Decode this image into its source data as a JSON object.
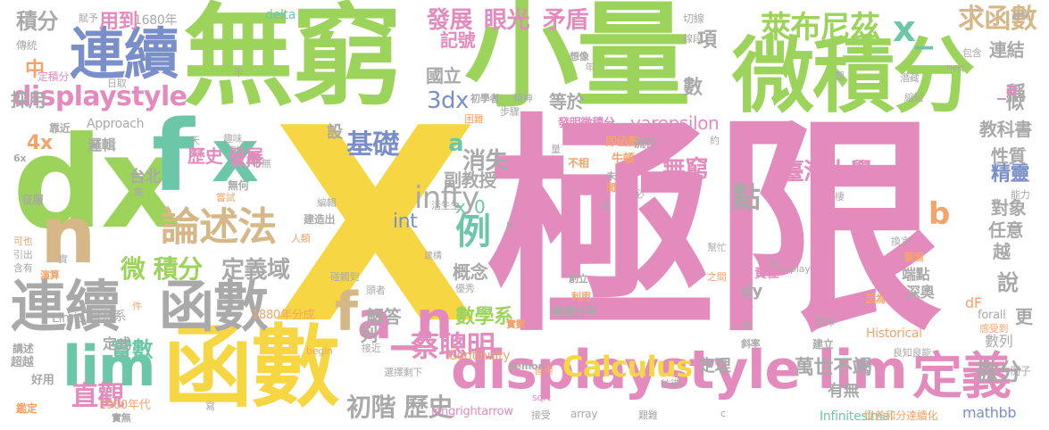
{
  "palette": {
    "pink": "#e38bbd",
    "green": "#9cd35b",
    "yellow": "#f6d743",
    "blue": "#7a8fca",
    "teal": "#6cc7a8",
    "gray": "#a9a9a9",
    "tan": "#d6b787",
    "orange": "#f4a36b",
    "lightblue": "#8ab8d9",
    "lime": "#c7db5a"
  },
  "words": [
    {
      "text": "極限",
      "color": "pink"
    },
    {
      "text": "X",
      "color": "yellow"
    },
    {
      "text": "小量",
      "color": "green"
    },
    {
      "text": "無窮",
      "color": "green"
    },
    {
      "text": "微積分",
      "color": "green"
    },
    {
      "text": "dx",
      "color": "green"
    },
    {
      "text": "函數",
      "color": "yellow"
    },
    {
      "text": "連續",
      "color": "gray"
    },
    {
      "text": "函數",
      "color": "gray"
    },
    {
      "text": "f",
      "color": "teal"
    },
    {
      "text": "x",
      "color": "teal"
    },
    {
      "text": "n",
      "color": "tan"
    },
    {
      "text": "連續",
      "color": "blue"
    },
    {
      "text": "displaystyle lim",
      "color": "pink"
    },
    {
      "text": "displaystyle",
      "color": "pink"
    },
    {
      "text": "論述法",
      "color": "tan"
    },
    {
      "text": "lim",
      "color": "teal"
    },
    {
      "text": "a_n",
      "color": "pink"
    },
    {
      "text": "定義",
      "color": "pink"
    },
    {
      "text": "萊布尼茲",
      "color": "green"
    },
    {
      "text": "x_",
      "color": "teal"
    },
    {
      "text": "求函數",
      "color": "tan"
    },
    {
      "text": "例",
      "color": "teal"
    },
    {
      "text": "f",
      "color": "tan"
    },
    {
      "text": "蔡聰明",
      "color": "pink"
    },
    {
      "text": "Calculus",
      "color": "yellow"
    },
    {
      "text": "微 積分",
      "color": "green"
    },
    {
      "text": "定義域",
      "color": "gray"
    },
    {
      "text": "直觀",
      "color": "pink"
    },
    {
      "text": "初階 歷史",
      "color": "gray"
    },
    {
      "text": "數學系",
      "color": "green"
    },
    {
      "text": "infty",
      "color": "gray"
    },
    {
      "text": "基礎",
      "color": "blue"
    },
    {
      "text": "消失",
      "color": "gray"
    },
    {
      "text": "無窮",
      "color": "pink"
    },
    {
      "text": "點",
      "color": "gray"
    },
    {
      "text": "臺灣大學",
      "color": "pink"
    },
    {
      "text": "精靈",
      "color": "blue"
    },
    {
      "text": "b",
      "color": "orange"
    },
    {
      "text": "微分",
      "color": "gray"
    },
    {
      "text": "歷史 發展",
      "color": "pink"
    },
    {
      "text": "發展",
      "color": "pink"
    },
    {
      "text": "眼光",
      "color": "pink"
    },
    {
      "text": "矛盾",
      "color": "pink"
    },
    {
      "text": "積分",
      "color": "gray"
    },
    {
      "text": "用到",
      "color": "pink"
    },
    {
      "text": "3dx",
      "color": "blue"
    },
    {
      "text": "實數",
      "color": "teal"
    },
    {
      "text": "萬世不竭",
      "color": "gray"
    },
    {
      "text": "varepsilon",
      "color": "pink"
    },
    {
      "text": "int",
      "color": "blue"
    },
    {
      "text": "a",
      "color": "teal"
    },
    {
      "text": "副教授",
      "color": "gray"
    },
    {
      "text": "教科書",
      "color": "gray"
    },
    {
      "text": "性質",
      "color": "gray"
    },
    {
      "text": "記號",
      "color": "pink"
    },
    {
      "text": "國立",
      "color": "gray"
    },
    {
      "text": "等於",
      "color": "gray"
    },
    {
      "text": "數",
      "color": "gray"
    },
    {
      "text": "項",
      "color": "gray"
    },
    {
      "text": "稱",
      "color": "gray"
    },
    {
      "text": "連結",
      "color": "gray"
    },
    {
      "text": "_a",
      "color": "pink"
    },
    {
      "text": "似",
      "color": "gray"
    },
    {
      "text": "對象",
      "color": "gray"
    },
    {
      "text": "任意",
      "color": "gray"
    },
    {
      "text": "越",
      "color": "gray"
    },
    {
      "text": "說",
      "color": "gray"
    },
    {
      "text": "更",
      "color": "gray"
    },
    {
      "text": "數列",
      "color": "gray"
    },
    {
      "text": "例子",
      "color": "gray"
    },
    {
      "text": "定理",
      "color": "gray"
    },
    {
      "text": "有無",
      "color": "gray"
    },
    {
      "text": "mathbb",
      "color": "blue"
    },
    {
      "text": "Infinitesimal",
      "color": "teal"
    },
    {
      "text": "從差和分達續化",
      "color": "orange"
    },
    {
      "text": "概念",
      "color": "gray"
    },
    {
      "text": "解答",
      "color": "gray"
    },
    {
      "text": "列",
      "color": "gray"
    },
    {
      "text": "指",
      "color": "pink"
    },
    {
      "text": "dy",
      "color": "gray"
    },
    {
      "text": "責任",
      "color": "pink"
    },
    {
      "text": "端點",
      "color": "gray"
    },
    {
      "text": "深奧",
      "color": "gray"
    },
    {
      "text": "中",
      "color": "orange"
    },
    {
      "text": "4x",
      "color": "orange"
    },
    {
      "text": "採用",
      "color": "gray"
    },
    {
      "text": "邏輯",
      "color": "gray"
    },
    {
      "text": "台北",
      "color": "gray"
    },
    {
      "text": "三角",
      "color": "pink"
    },
    {
      "text": "設",
      "color": "gray"
    },
    {
      "text": "Approach",
      "color": "gray"
    },
    {
      "text": "x_0",
      "color": "teal"
    },
    {
      "text": "定式",
      "color": "gray"
    },
    {
      "text": "實數系",
      "color": "gray"
    },
    {
      "text": "1880年分成",
      "color": "orange"
    },
    {
      "text": "1960年代",
      "color": "orange"
    },
    {
      "text": "1680年",
      "color": "gray"
    },
    {
      "text": "Continuity",
      "color": "orange"
    },
    {
      "text": "Limit",
      "color": "gray"
    },
    {
      "text": "Historical",
      "color": "orange"
    },
    {
      "text": "forall",
      "color": "gray"
    },
    {
      "text": "longrightarrow",
      "color": "pink"
    },
    {
      "text": "delta",
      "color": "teal"
    },
    {
      "text": "發明微積分",
      "color": "pink"
    },
    {
      "text": "微積分甲",
      "color": "gray"
    },
    {
      "text": "即函數",
      "color": "orange"
    },
    {
      "text": "牛頓",
      "color": "orange"
    },
    {
      "text": "流行",
      "color": "gray"
    },
    {
      "text": "不相",
      "color": "orange"
    },
    {
      "text": "切線",
      "color": "gray"
    },
    {
      "text": "線段",
      "color": "gray"
    },
    {
      "text": "最終",
      "color": "gray"
    },
    {
      "text": "包含",
      "color": "gray"
    },
    {
      "text": "潛藏",
      "color": "gray"
    },
    {
      "text": "縮短",
      "color": "gray"
    },
    {
      "text": "能力",
      "color": "gray"
    },
    {
      "text": "換言",
      "color": "gray"
    },
    {
      "text": "排斥",
      "color": "gray"
    },
    {
      "text": "建立",
      "color": "gray"
    },
    {
      "text": "良知良能",
      "color": "gray"
    },
    {
      "text": "感受到",
      "color": "orange"
    },
    {
      "text": "超越",
      "color": "gray"
    },
    {
      "text": "好用",
      "color": "gray"
    },
    {
      "text": "鑑定",
      "color": "orange"
    },
    {
      "text": "講述",
      "color": "gray"
    },
    {
      "text": "靠近",
      "color": "gray"
    },
    {
      "text": "傳統",
      "color": "gray"
    },
    {
      "text": "征服",
      "color": "gray"
    },
    {
      "text": "可也",
      "color": "orange"
    },
    {
      "text": "引出",
      "color": "gray"
    },
    {
      "text": "含有",
      "color": "gray"
    },
    {
      "text": "趣味",
      "color": "gray"
    },
    {
      "text": "事情",
      "color": "gray"
    },
    {
      "text": "無何",
      "color": "gray"
    },
    {
      "text": "嘗試",
      "color": "orange"
    },
    {
      "text": "建造出",
      "color": "gray"
    },
    {
      "text": "人類",
      "color": "orange"
    },
    {
      "text": "編輯",
      "color": "gray"
    },
    {
      "text": "碰觸到",
      "color": "gray"
    },
    {
      "text": "頭者",
      "color": "gray"
    },
    {
      "text": "接近",
      "color": "gray"
    },
    {
      "text": "選擇剩下",
      "color": "gray"
    },
    {
      "text": "建構",
      "color": "gray"
    },
    {
      "text": "優秀",
      "color": "gray"
    },
    {
      "text": "活生生",
      "color": "gray"
    },
    {
      "text": "初學者",
      "color": "gray"
    },
    {
      "text": "困難",
      "color": "orange"
    },
    {
      "text": "步驟",
      "color": "gray"
    },
    {
      "text": "精神",
      "color": "gray"
    },
    {
      "text": "想像",
      "color": "gray"
    },
    {
      "text": "定積分",
      "color": "pink"
    },
    {
      "text": "日取",
      "color": "gray"
    },
    {
      "text": "賦予",
      "color": "gray"
    },
    {
      "text": "半",
      "color": "gray"
    },
    {
      "text": "年",
      "color": "gray"
    },
    {
      "text": "約",
      "color": "gray"
    },
    {
      "text": "必",
      "color": "gray"
    },
    {
      "text": "總",
      "color": "gray"
    },
    {
      "text": "創立",
      "color": "gray"
    },
    {
      "text": "利用",
      "color": "orange"
    },
    {
      "text": "之間",
      "color": "orange"
    },
    {
      "text": "幫忙",
      "color": "gray"
    },
    {
      "text": "斜率",
      "color": "gray"
    },
    {
      "text": "因為",
      "color": "orange"
    },
    {
      "text": "觀照",
      "color": "orange"
    },
    {
      "text": "演算",
      "color": "orange"
    },
    {
      "text": "實數",
      "color": "orange"
    },
    {
      "text": "善用",
      "color": "orange"
    },
    {
      "text": "彷彿",
      "color": "gray"
    },
    {
      "text": "艱難",
      "color": "gray"
    },
    {
      "text": "接受",
      "color": "gray"
    },
    {
      "text": "實無",
      "color": "gray"
    },
    {
      "text": "begin",
      "color": "orange"
    },
    {
      "text": "demon",
      "color": "gray"
    },
    {
      "text": "sqrt",
      "color": "pink"
    },
    {
      "text": "display",
      "color": "gray"
    },
    {
      "text": "neq",
      "color": "gray"
    },
    {
      "text": "array",
      "color": "gray"
    },
    {
      "text": "6x",
      "color": "gray"
    },
    {
      "text": "dF",
      "color": "orange"
    },
    {
      "text": "y",
      "color": "gray"
    },
    {
      "text": "R",
      "color": "gray"
    },
    {
      "text": "c",
      "color": "gray"
    },
    {
      "text": "生",
      "color": "gray"
    },
    {
      "text": "棲",
      "color": "gray"
    },
    {
      "text": "天",
      "color": "gray"
    },
    {
      "text": "量",
      "color": "gray"
    },
    {
      "text": "超",
      "color": "gray"
    },
    {
      "text": "未",
      "color": "gray"
    },
    {
      "text": "間",
      "color": "orange"
    },
    {
      "text": "件",
      "color": "orange"
    },
    {
      "text": "寫",
      "color": "gray"
    },
    {
      "text": "鄉",
      "color": "gray"
    },
    {
      "text": "集",
      "color": "gray"
    },
    {
      "text": "沒",
      "color": "gray"
    },
    {
      "text": "實",
      "color": "gray"
    },
    {
      "text": "不無",
      "color": "gray"
    },
    {
      "text": "如何",
      "color": "gray"
    }
  ]
}
